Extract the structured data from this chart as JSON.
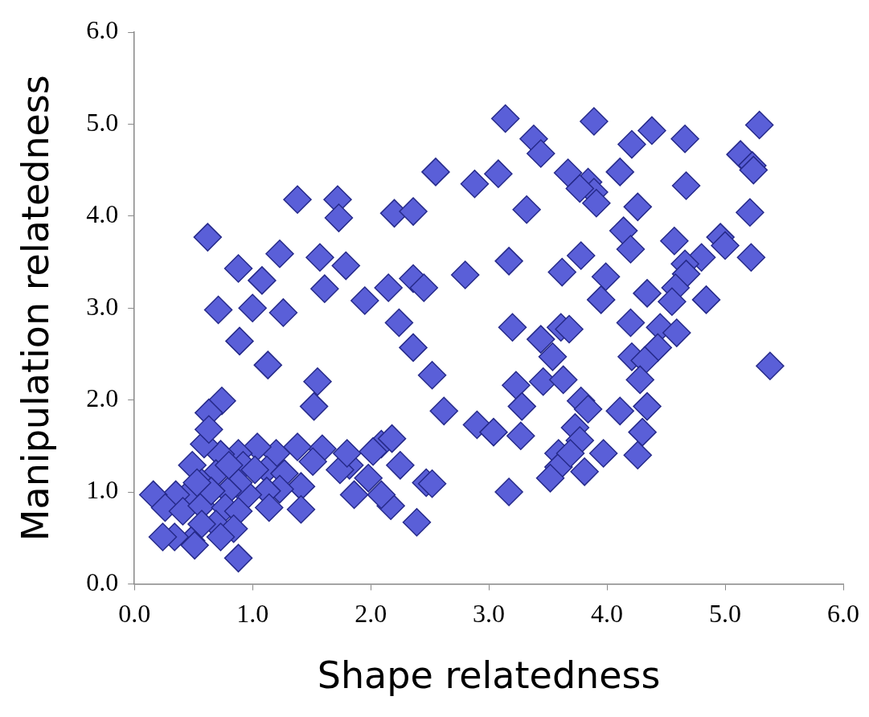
{
  "chart_data": {
    "type": "scatter",
    "xlabel": "Shape relatedness",
    "ylabel": "Manipulation relatedness",
    "xlim": [
      0,
      6
    ],
    "ylim": [
      0,
      6
    ],
    "xticks": [
      {
        "value": 0,
        "label": "0.0"
      },
      {
        "value": 1,
        "label": "1.0"
      },
      {
        "value": 2,
        "label": "2.0"
      },
      {
        "value": 3,
        "label": "3.0"
      },
      {
        "value": 4,
        "label": "4.0"
      },
      {
        "value": 5,
        "label": "5.0"
      },
      {
        "value": 6,
        "label": "6.0"
      }
    ],
    "yticks": [
      {
        "value": 0,
        "label": "0.0"
      },
      {
        "value": 1,
        "label": "1.0"
      },
      {
        "value": 2,
        "label": "2.0"
      },
      {
        "value": 3,
        "label": "3.0"
      },
      {
        "value": 4,
        "label": "4.0"
      },
      {
        "value": 5,
        "label": "5.0"
      },
      {
        "value": 6,
        "label": "6.0"
      }
    ],
    "grid": false,
    "legend": false,
    "marker": "diamond",
    "series": [
      {
        "color": "#5a5fd8",
        "x": [
          3.14,
          3.89,
          5.29,
          4.38,
          3.38,
          4.21,
          4.66,
          3.44,
          2.55,
          3.08,
          2.88,
          3.67,
          4.11,
          3.84,
          3.89,
          3.91,
          3.77,
          5.13,
          5.23,
          5.24,
          4.67,
          4.26,
          3.32,
          1.38,
          1.72,
          1.73,
          2.2,
          2.36,
          5.21,
          4.14,
          0.62,
          4.2,
          4.57,
          4.96,
          5.0,
          4.8,
          5.22,
          4.66,
          4.67,
          2.8,
          3.17,
          3.62,
          3.78,
          3.99,
          4.58,
          4.34,
          4.55,
          4.84,
          3.95,
          1.23,
          1.57,
          1.79,
          0.88,
          1.08,
          1.61,
          2.15,
          2.36,
          2.45,
          0.71,
          1.0,
          1.26,
          1.95,
          2.24,
          2.36,
          0.89,
          1.13,
          2.52,
          3.2,
          3.44,
          3.61,
          3.68,
          4.2,
          4.45,
          4.59,
          4.43,
          4.21,
          4.32,
          5.38,
          3.54,
          3.46,
          3.23,
          3.63,
          4.28,
          1.55,
          0.74,
          2.62,
          1.52,
          0.63,
          2.9,
          3.04,
          3.27,
          3.28,
          3.78,
          3.84,
          4.11,
          4.34,
          4.3,
          3.73,
          3.77,
          3.59,
          3.97,
          4.26,
          3.59,
          3.81,
          3.52,
          3.17,
          3.69,
          2.09,
          2.18,
          2.02,
          2.25,
          2.47,
          2.52,
          2.39,
          2.17,
          2.09,
          1.86,
          1.98,
          1.82,
          1.74,
          1.8,
          1.59,
          1.51,
          1.38,
          1.41,
          1.41,
          1.2,
          1.04,
          0.88,
          0.73,
          0.59,
          0.63,
          0.49,
          0.92,
          1.12,
          1.27,
          1.23,
          1.12,
          1.14,
          0.96,
          0.88,
          0.79,
          0.69,
          0.57,
          0.45,
          0.35,
          0.16,
          0.26,
          0.41,
          0.57,
          0.77,
          0.88,
          0.69,
          0.84,
          0.57,
          0.48,
          0.51,
          0.34,
          0.24,
          0.88,
          0.73,
          0.65,
          1.02,
          0.53,
          0.8
        ],
        "values": [
          5.06,
          5.03,
          4.99,
          4.93,
          4.84,
          4.78,
          4.84,
          4.68,
          4.48,
          4.46,
          4.35,
          4.47,
          4.48,
          4.37,
          4.26,
          4.14,
          4.3,
          4.67,
          4.55,
          4.5,
          4.33,
          4.1,
          4.07,
          4.18,
          4.18,
          3.98,
          4.03,
          4.05,
          4.04,
          3.84,
          3.77,
          3.64,
          3.73,
          3.77,
          3.68,
          3.55,
          3.55,
          3.48,
          3.37,
          3.36,
          3.51,
          3.39,
          3.57,
          3.34,
          3.22,
          3.16,
          3.07,
          3.09,
          3.09,
          3.59,
          3.55,
          3.46,
          3.43,
          3.3,
          3.21,
          3.22,
          3.32,
          3.22,
          2.98,
          3.0,
          2.95,
          3.08,
          2.84,
          2.57,
          2.64,
          2.38,
          2.27,
          2.79,
          2.66,
          2.79,
          2.77,
          2.84,
          2.79,
          2.73,
          2.57,
          2.47,
          2.43,
          2.37,
          2.47,
          2.2,
          2.16,
          2.22,
          2.22,
          2.2,
          1.99,
          1.88,
          1.93,
          1.86,
          1.73,
          1.65,
          1.61,
          1.93,
          1.99,
          1.9,
          1.88,
          1.93,
          1.65,
          1.7,
          1.56,
          1.42,
          1.42,
          1.4,
          1.27,
          1.22,
          1.15,
          1.0,
          1.42,
          1.52,
          1.58,
          1.44,
          1.29,
          1.1,
          1.09,
          0.67,
          0.85,
          0.97,
          0.97,
          1.15,
          1.29,
          1.24,
          1.42,
          1.47,
          1.33,
          1.49,
          1.06,
          0.81,
          1.42,
          1.49,
          1.42,
          1.41,
          1.52,
          1.68,
          1.29,
          1.29,
          1.24,
          1.2,
          1.03,
          1.01,
          0.83,
          0.97,
          1.1,
          1.01,
          1.2,
          1.1,
          0.97,
          0.97,
          0.97,
          0.83,
          0.79,
          0.85,
          0.83,
          0.79,
          0.65,
          0.6,
          0.65,
          0.47,
          0.42,
          0.51,
          0.51,
          0.28,
          0.51,
          1.01,
          1.24,
          1.1,
          1.29
        ]
      }
    ]
  }
}
